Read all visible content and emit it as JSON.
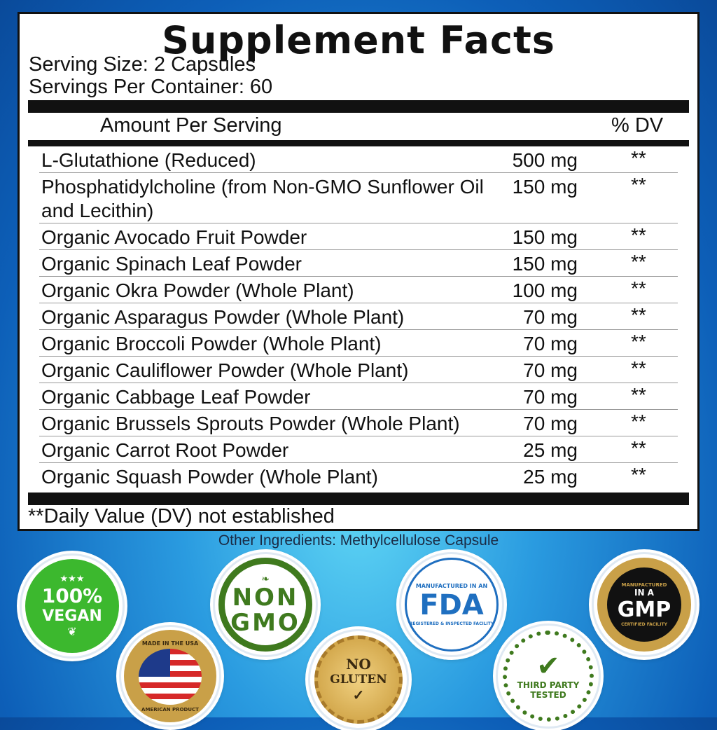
{
  "title": "Supplement Facts",
  "serving_size": "Serving Size: 2 Capsules",
  "servings_per_container": "Servings Per Container: 60",
  "header": {
    "amount": "Amount Per Serving",
    "dv": "% DV"
  },
  "rows": [
    {
      "name": "L-Glutathione (Reduced)",
      "amount": "500 mg",
      "dv": "**"
    },
    {
      "name": "Phosphatidylcholine (from Non-GMO Sunflower Oil and Lecithin)",
      "amount": "150 mg",
      "dv": "**"
    },
    {
      "name": "Organic Avocado Fruit Powder",
      "amount": "150 mg",
      "dv": "**"
    },
    {
      "name": "Organic Spinach Leaf Powder",
      "amount": "150 mg",
      "dv": "**"
    },
    {
      "name": "Organic Okra Powder (Whole Plant)",
      "amount": "100 mg",
      "dv": "**"
    },
    {
      "name": "Organic Asparagus Powder (Whole Plant)",
      "amount": "70 mg",
      "dv": "**"
    },
    {
      "name": "Organic Broccoli Powder (Whole Plant)",
      "amount": "70 mg",
      "dv": "**"
    },
    {
      "name": "Organic Cauliflower Powder (Whole Plant)",
      "amount": "70 mg",
      "dv": "**"
    },
    {
      "name": "Organic Cabbage Leaf Powder",
      "amount": "70 mg",
      "dv": "**"
    },
    {
      "name": "Organic Brussels Sprouts Powder (Whole Plant)",
      "amount": "70 mg",
      "dv": "**"
    },
    {
      "name": "Organic Carrot Root Powder",
      "amount": "25 mg",
      "dv": "**"
    },
    {
      "name": "Organic Squash Powder (Whole Plant)",
      "amount": "25 mg",
      "dv": "**"
    }
  ],
  "footnote": "**Daily Value (DV) not established",
  "other_ingredients": "Other Ingredients: Methylcellulose Capsule",
  "badges": {
    "vegan": {
      "top": "100%",
      "bottom": "VEGAN",
      "color": "#3cb82e"
    },
    "usa": {
      "top": "MADE IN THE USA",
      "bottom": "AMERICAN PRODUCT",
      "color": "#c9a048"
    },
    "nongmo": {
      "top": "NON",
      "bottom": "GMO",
      "color": "#3f7a1e"
    },
    "gluten": {
      "top": "NO",
      "bottom": "GLUTEN",
      "color": "#c99a3a"
    },
    "fda": {
      "top": "MANUFACTURED IN AN",
      "main": "FDA",
      "bottom": "REGISTERED & INSPECTED FACILITY",
      "color": "#1f6fc0"
    },
    "third": {
      "top": "THIRD PARTY",
      "bottom": "TESTED",
      "color": "#3f7a1e"
    },
    "gmp": {
      "top": "MANUFACTURED",
      "mid": "IN A",
      "main": "GMP",
      "bottom": "CERTIFIED FACILITY",
      "color": "#c9a048"
    }
  }
}
